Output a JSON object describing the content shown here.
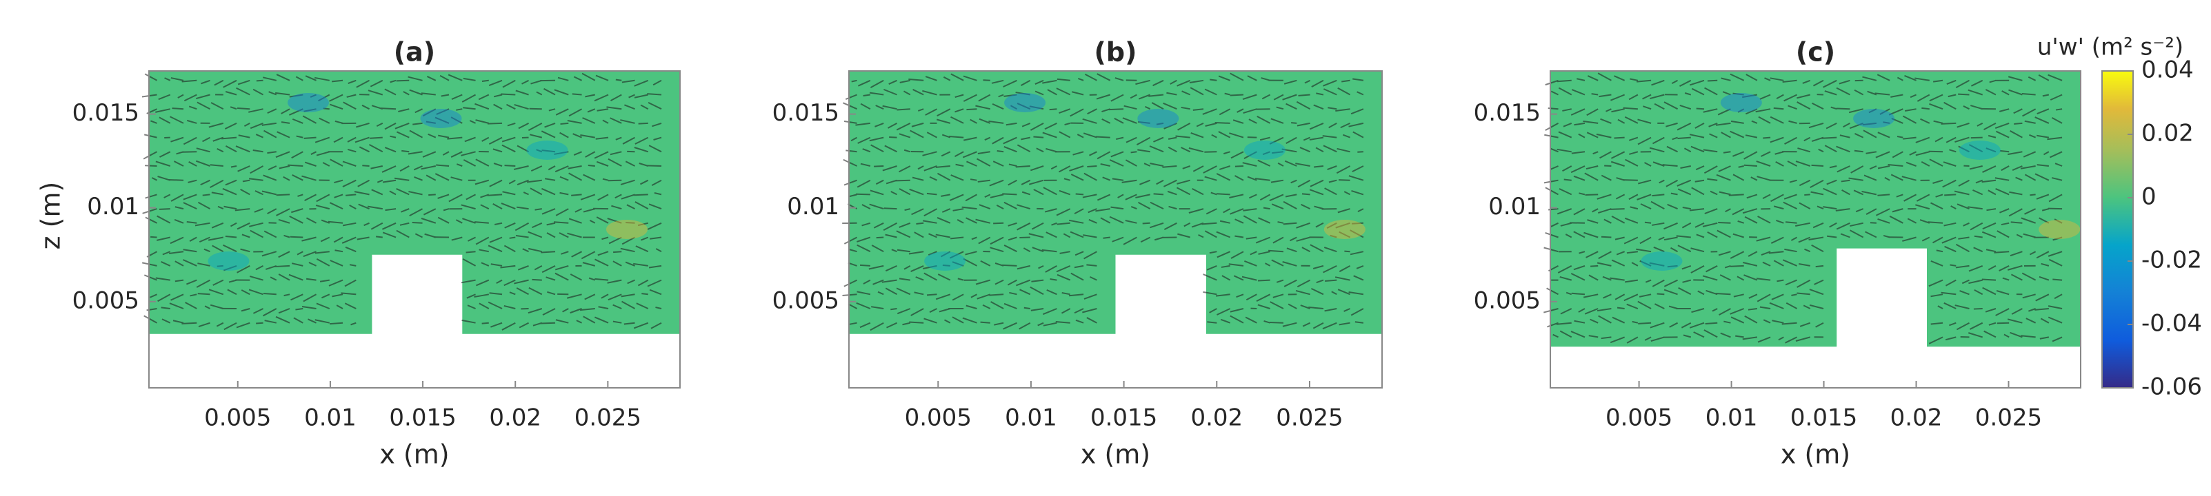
{
  "chart_data": [
    {
      "type": "quiver",
      "title": "(a)",
      "xlabel": "x (m)",
      "ylabel": "z (m)",
      "xlim": [
        0.0002,
        0.0289
      ],
      "ylim": [
        0.0004,
        0.0173
      ],
      "xticks": [
        0.005,
        0.01,
        0.015,
        0.02,
        0.025
      ],
      "yticks": [
        0.005,
        0.01,
        0.015
      ]
    },
    {
      "type": "quiver",
      "title": "(b)",
      "xlabel": "x (m)",
      "xlim": [
        0.0002,
        0.0289
      ],
      "ylim": [
        0.0004,
        0.0173
      ],
      "xticks": [
        0.005,
        0.01,
        0.015,
        0.02,
        0.025
      ],
      "yticks": [
        0.005,
        0.01,
        0.015
      ]
    },
    {
      "type": "quiver",
      "title": "(c)",
      "xlabel": "x (m)",
      "xlim": [
        0.0002,
        0.0289
      ],
      "ylim": [
        0.0004,
        0.0173
      ],
      "xticks": [
        0.005,
        0.01,
        0.015,
        0.02,
        0.025
      ],
      "yticks": [
        0.005,
        0.01,
        0.015
      ]
    },
    {
      "type": "colorbar",
      "label": "u'w' (m² s⁻²)",
      "ylim": [
        -0.06,
        0.04
      ],
      "yticks": [
        -0.06,
        -0.04,
        -0.02,
        0,
        0.02,
        0.04
      ]
    }
  ]
}
